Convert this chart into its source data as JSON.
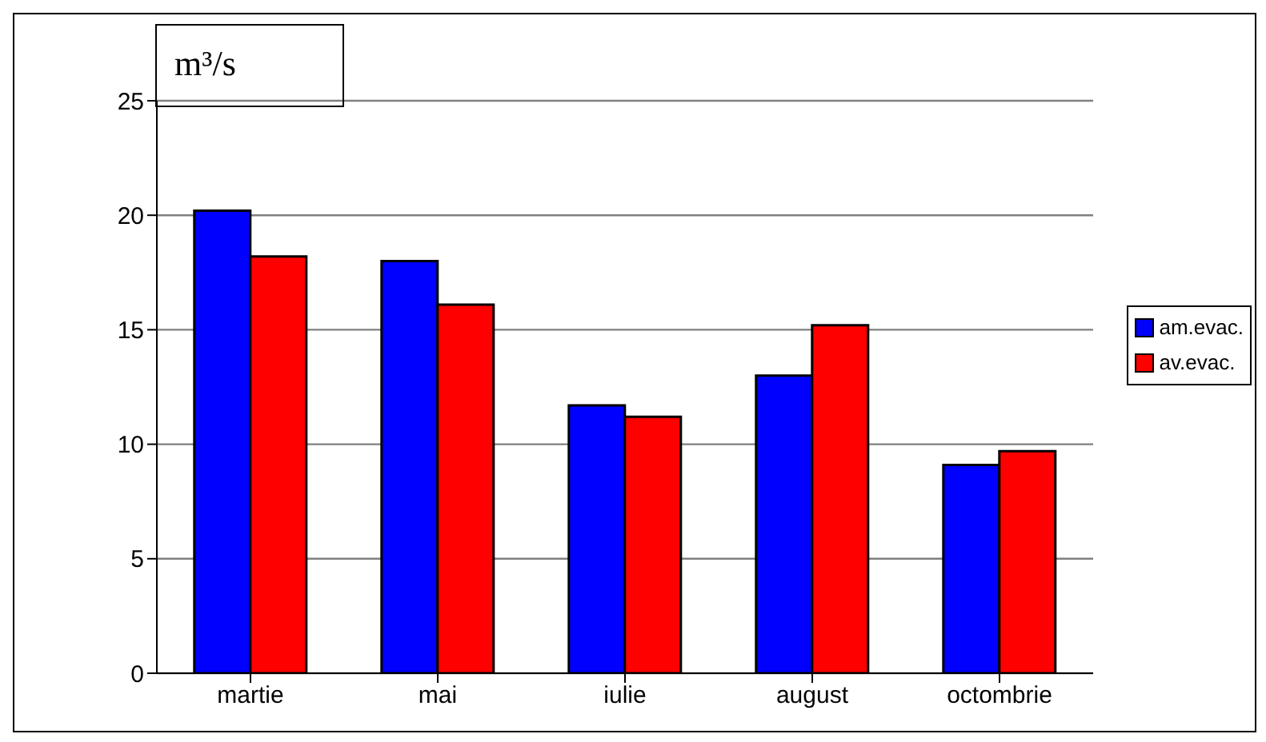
{
  "chart_data": {
    "type": "bar",
    "ylabel": "m³/s",
    "categories": [
      "martie",
      "mai",
      "iulie",
      "august",
      "octombrie"
    ],
    "series": [
      {
        "name": "am.evac.",
        "color": "#0000ff",
        "values": [
          20.2,
          18.0,
          11.7,
          13.0,
          9.1
        ]
      },
      {
        "name": "av.evac.",
        "color": "#ff0000",
        "values": [
          18.2,
          16.1,
          11.2,
          15.2,
          9.7
        ]
      }
    ],
    "ylim": [
      0,
      25
    ],
    "yticks": [
      0,
      5,
      10,
      15,
      20,
      25
    ],
    "grid": "y",
    "legend": "right"
  }
}
